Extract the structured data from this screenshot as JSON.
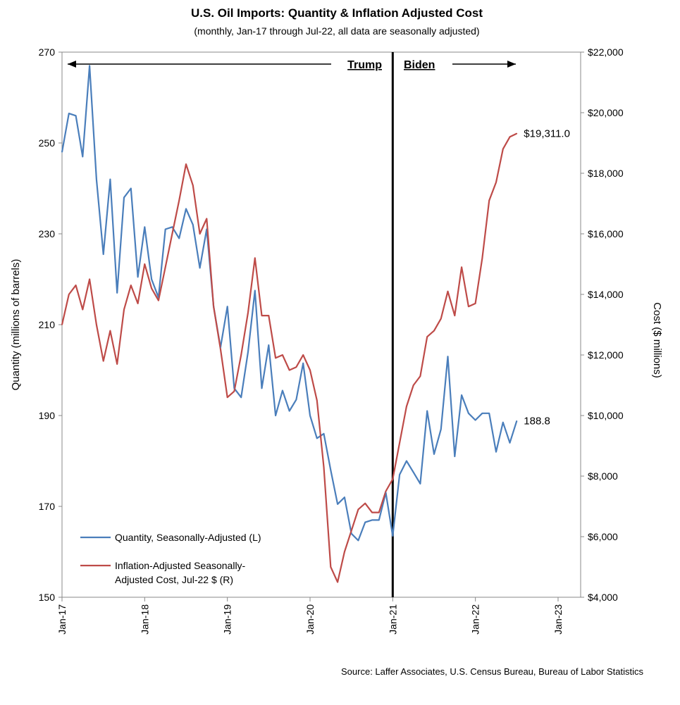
{
  "chart_data": {
    "type": "line",
    "title": "U.S. Oil Imports: Quantity & Inflation Adjusted Cost",
    "subtitle": "(monthly, Jan-17 through Jul-22, all data are seasonally adjusted)",
    "y_left_label": "Quantity (millions of barrels)",
    "y_right_label": "Cost ($ millions)",
    "y_left_lim": [
      150,
      270
    ],
    "y_left_ticks": [
      "150",
      "170",
      "190",
      "210",
      "230",
      "250",
      "270"
    ],
    "y_right_lim": [
      4000,
      22000
    ],
    "y_right_ticks": [
      "$4,000",
      "$6,000",
      "$8,000",
      "$10,000",
      "$12,000",
      "$14,000",
      "$16,000",
      "$18,000",
      "$20,000",
      "$22,000"
    ],
    "x_ticks": [
      "Jan-17",
      "Jan-18",
      "Jan-19",
      "Jan-20",
      "Jan-21",
      "Jan-22",
      "Jan-23"
    ],
    "x_start": "Jan-17",
    "x_end": "Jul-22",
    "grid": false,
    "legend_position": "bottom-left",
    "series": [
      {
        "name": "Quantity, Seasonally-Adjusted (L)",
        "axis": "left",
        "color": "#4a7ebb",
        "end_label": "188.8",
        "values": [
          248,
          256.5,
          256,
          247,
          267,
          242,
          225.5,
          242,
          217,
          238,
          240,
          220.5,
          231.5,
          220,
          216,
          231,
          231.5,
          229,
          235.5,
          232,
          222.5,
          231,
          214,
          205,
          214,
          196,
          194,
          204,
          217.5,
          196,
          205.5,
          190,
          195.5,
          191,
          193.5,
          201.5,
          190,
          185,
          186,
          178,
          170.5,
          172,
          164,
          162.5,
          166.5,
          167,
          167,
          173,
          163.5,
          177,
          180,
          177.5,
          175,
          191,
          181.5,
          187,
          203,
          181,
          194.5,
          190.5,
          189,
          190.5,
          190.5,
          182,
          188.5,
          184,
          188.8
        ]
      },
      {
        "name": "Inflation-Adjusted Seasonally-Adjusted Cost, Jul-22 $ (R)",
        "axis": "right",
        "color": "#be4b48",
        "end_label": "$19,311.0",
        "values": [
          13000,
          14000,
          14300,
          13500,
          14500,
          13000,
          11800,
          12800,
          11700,
          13500,
          14300,
          13700,
          15000,
          14200,
          13800,
          14900,
          16000,
          17100,
          18300,
          17600,
          16000,
          16500,
          13600,
          12200,
          10600,
          10800,
          12000,
          13400,
          15200,
          13300,
          13300,
          11900,
          12000,
          11500,
          11600,
          12000,
          11500,
          10500,
          8300,
          5000,
          4500,
          5500,
          6200,
          6900,
          7100,
          6800,
          6800,
          7500,
          7900,
          9100,
          10300,
          11000,
          11300,
          12600,
          12800,
          13200,
          14100,
          13300,
          14900,
          13600,
          13700,
          15200,
          17100,
          17700,
          18800,
          19200,
          19311
        ]
      }
    ],
    "annotations": {
      "left_era": "Trump",
      "right_era": "Biden",
      "divider_at": "Jan-21"
    },
    "source": "Source: Laffer Associates, U.S. Census Bureau, Bureau of Labor Statistics"
  }
}
